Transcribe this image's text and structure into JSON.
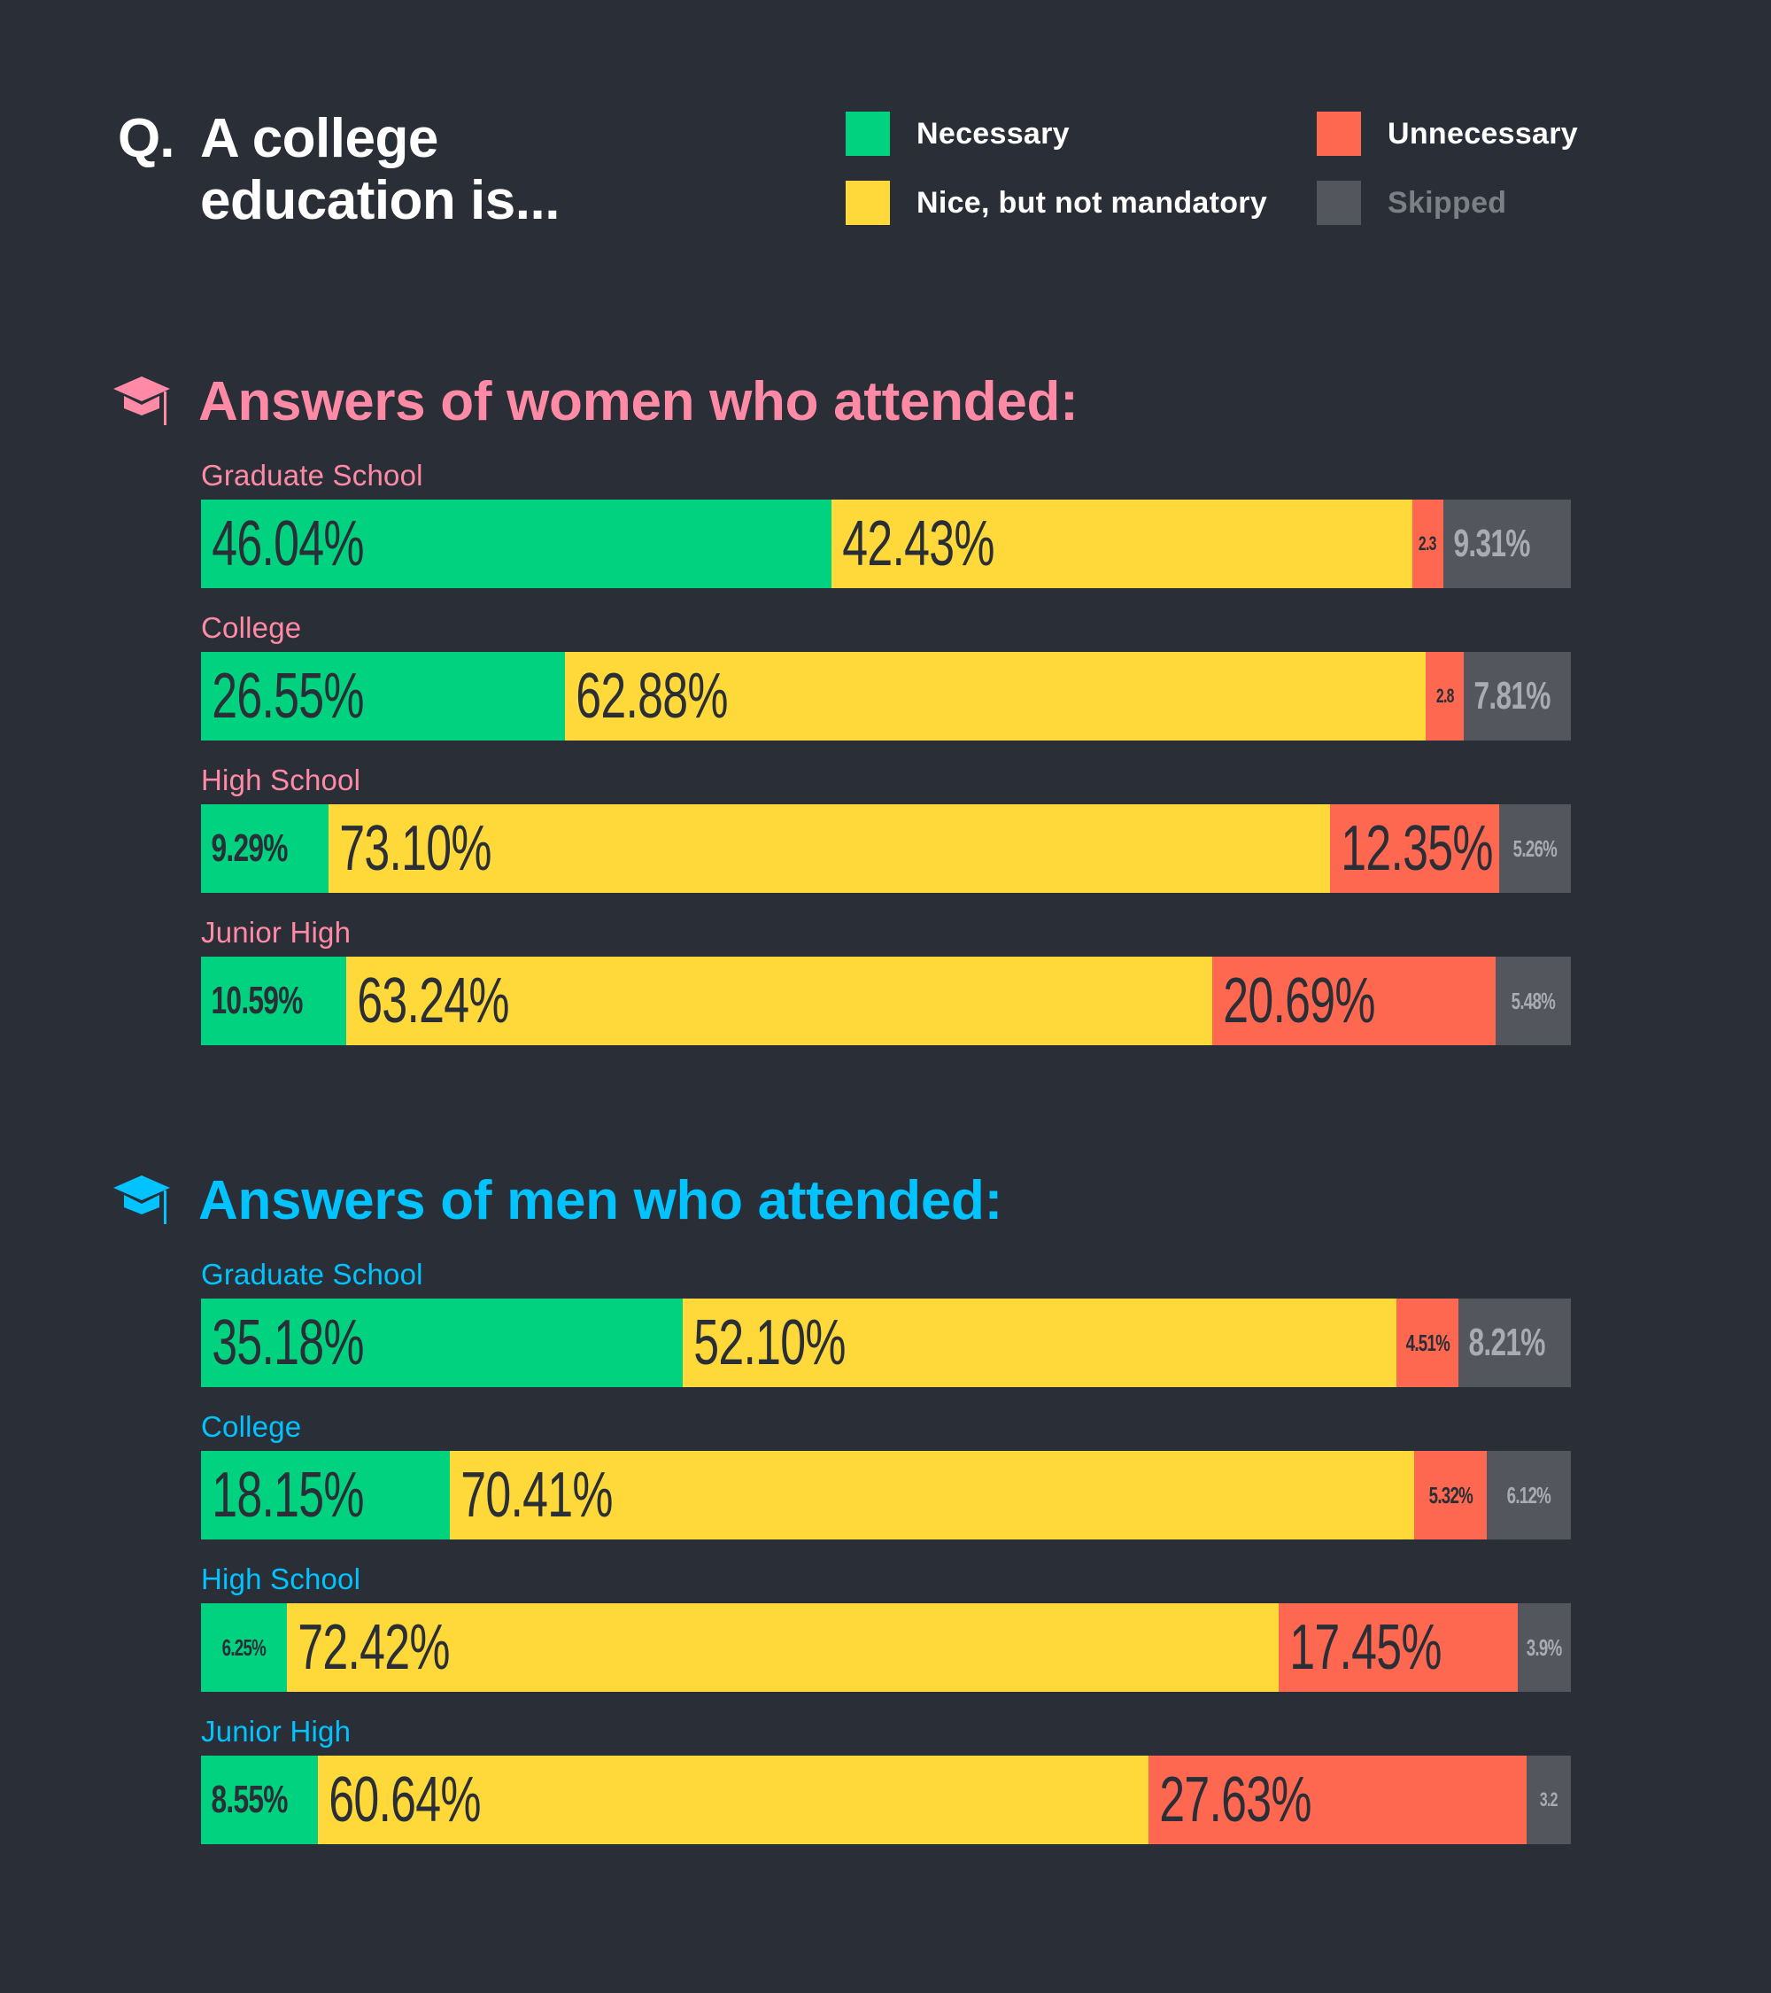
{
  "question": {
    "prefix": "Q.",
    "text": "A college education is..."
  },
  "legend": [
    {
      "key": "necessary",
      "label": "Necessary",
      "color": "#00d27f"
    },
    {
      "key": "nice",
      "label": "Nice, but not mandatory",
      "color": "#ffd939"
    },
    {
      "key": "unnecessary",
      "label": "Unnecessary",
      "color": "#ff6850"
    },
    {
      "key": "skipped",
      "label": "Skipped",
      "color": "#53565c"
    }
  ],
  "colors": {
    "background": "#2a2e36",
    "women_accent": "#ff8aa6",
    "men_accent": "#00c3ff"
  },
  "sections": {
    "women": {
      "title": "Answers of women who attended:"
    },
    "men": {
      "title": "Answers of men who attended:"
    }
  },
  "chart_data": [
    {
      "type": "bar",
      "stacked": true,
      "orientation": "horizontal",
      "title": "Answers of women who attended:",
      "categories": [
        "Graduate School",
        "College",
        "High School",
        "Junior High"
      ],
      "series": [
        {
          "name": "Necessary",
          "values": [
            46.04,
            26.55,
            9.29,
            10.59
          ],
          "labels": [
            "46.04%",
            "26.55%",
            "9.29%",
            "10.59%"
          ]
        },
        {
          "name": "Nice, but not mandatory",
          "values": [
            42.43,
            62.88,
            73.1,
            63.24
          ],
          "labels": [
            "42.43%",
            "62.88%",
            "73.10%",
            "63.24%"
          ]
        },
        {
          "name": "Unnecessary",
          "values": [
            2.3,
            2.8,
            12.35,
            20.69
          ],
          "labels": [
            "2.3",
            "2.8",
            "12.35%",
            "20.69%"
          ]
        },
        {
          "name": "Skipped",
          "values": [
            9.31,
            7.81,
            5.26,
            5.48
          ],
          "labels": [
            "9.31%",
            "7.81%",
            "5.26%",
            "5.48%"
          ]
        }
      ],
      "xlim": [
        0,
        100
      ]
    },
    {
      "type": "bar",
      "stacked": true,
      "orientation": "horizontal",
      "title": "Answers of men who attended:",
      "categories": [
        "Graduate School",
        "College",
        "High School",
        "Junior High"
      ],
      "series": [
        {
          "name": "Necessary",
          "values": [
            35.18,
            18.15,
            6.25,
            8.55
          ],
          "labels": [
            "35.18%",
            "18.15%",
            "6.25%",
            "8.55%"
          ]
        },
        {
          "name": "Nice, but not mandatory",
          "values": [
            52.1,
            70.41,
            72.42,
            60.64
          ],
          "labels": [
            "52.10%",
            "70.41%",
            "72.42%",
            "60.64%"
          ]
        },
        {
          "name": "Unnecessary",
          "values": [
            4.51,
            5.32,
            17.45,
            27.63
          ],
          "labels": [
            "4.51%",
            "5.32%",
            "17.45%",
            "27.63%"
          ]
        },
        {
          "name": "Skipped",
          "values": [
            8.21,
            6.12,
            3.9,
            3.2
          ],
          "labels": [
            "8.21%",
            "6.12%",
            "3.9%",
            "3.2"
          ]
        }
      ],
      "xlim": [
        0,
        100
      ]
    }
  ]
}
